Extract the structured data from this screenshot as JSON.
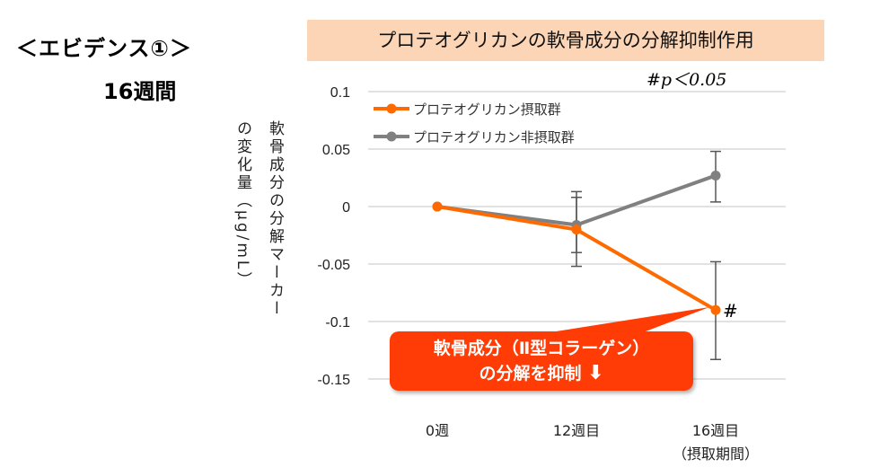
{
  "heading": "＜エビデンス①＞",
  "duration": "16週間",
  "chart_data": {
    "type": "line",
    "title": "プロテオグリカンの軟骨成分の分解抑制作用",
    "annotation": "#p＜0.05",
    "ylabel_col1": "軟骨成分の分解マーカー",
    "ylabel_col2": "の変化量（μg/mL）",
    "categories": [
      "0週",
      "12週目",
      "16週目"
    ],
    "category_note": "（摂取期間）",
    "ylim": [
      -0.15,
      0.1
    ],
    "yticks": [
      0.1,
      0.05,
      0,
      -0.05,
      -0.1,
      -0.15
    ],
    "ytick_labels": [
      "0.1",
      "0.05",
      "0",
      "-0.05",
      "-0.1",
      "-0.15"
    ],
    "grid": true,
    "legend_position": "top-left",
    "series": [
      {
        "name": "プロテオグリカン摂取群",
        "color": "#ff6a00",
        "values": [
          0,
          -0.02,
          -0.09
        ],
        "err_upper": [
          0,
          0.008,
          -0.048
        ],
        "err_lower": [
          0,
          -0.052,
          -0.133
        ],
        "marks": [
          "",
          "",
          "#"
        ]
      },
      {
        "name": "プロテオグリカン非摂取群",
        "color": "#808080",
        "values": [
          0,
          -0.016,
          0.027
        ],
        "err_upper": [
          0,
          0.013,
          0.048
        ],
        "err_lower": [
          0,
          -0.04,
          0.004
        ],
        "marks": [
          "",
          "",
          ""
        ]
      }
    ],
    "callout_line1": "軟骨成分（Ⅱ型コラーゲン）",
    "callout_line2": "の分解を抑制"
  }
}
